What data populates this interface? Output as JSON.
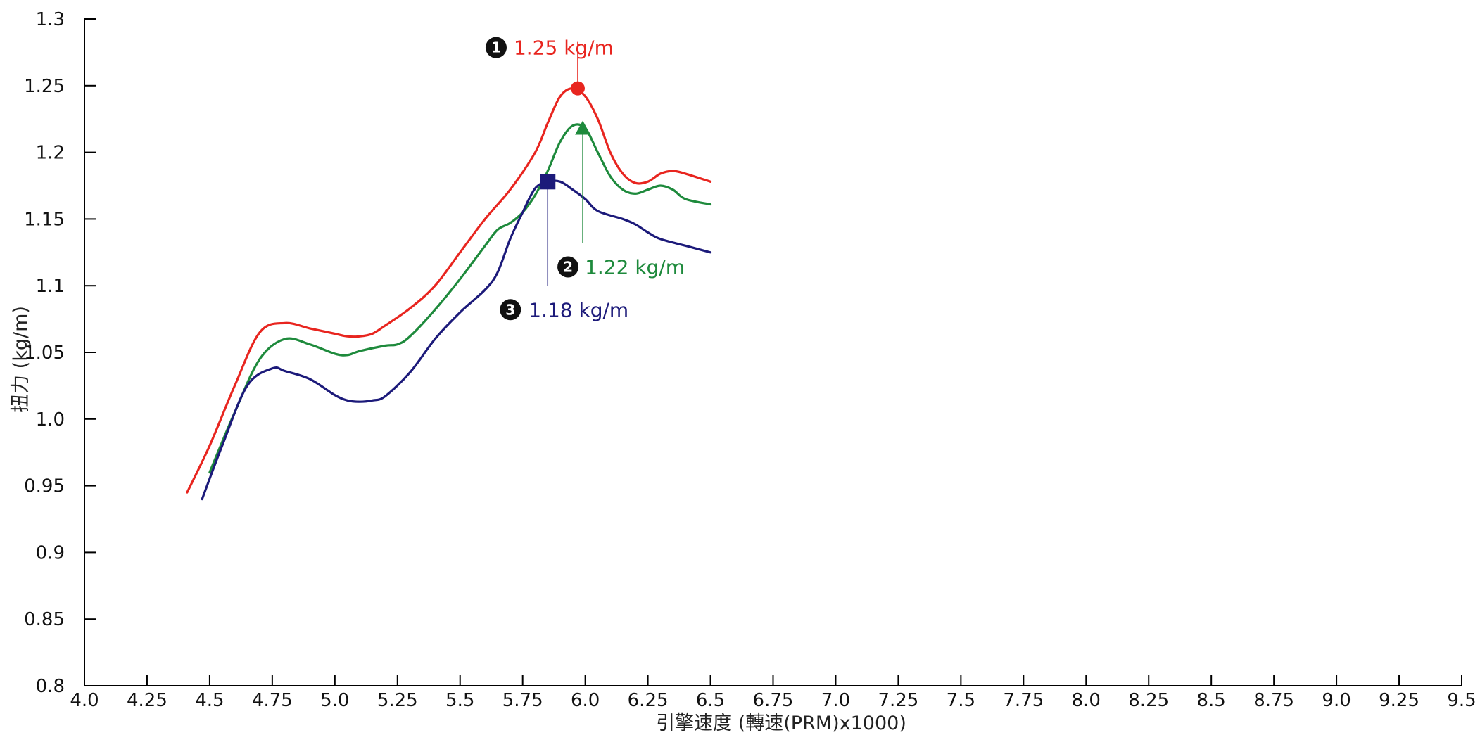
{
  "chart_data": {
    "type": "line",
    "title": "",
    "xlabel": "引擎速度 (轉速(PRM)x1000)",
    "ylabel": "扭力 (kg/m)",
    "xlim": [
      4.0,
      9.5
    ],
    "ylim": [
      0.8,
      1.3
    ],
    "grid": false,
    "xticks": [
      4.0,
      4.25,
      4.5,
      4.75,
      5.0,
      5.25,
      5.5,
      5.75,
      6.0,
      6.25,
      6.5,
      6.75,
      7.0,
      7.25,
      7.5,
      7.75,
      8.0,
      8.25,
      8.5,
      8.75,
      9.0,
      9.25,
      9.5
    ],
    "xtick_labels": [
      "4.0",
      "4.25",
      "4.5",
      "4.75",
      "5.0",
      "5.25",
      "5.5",
      "5.75",
      "6.0",
      "6.25",
      "6.5",
      "6.75",
      "7.0",
      "7.25",
      "7.5",
      "7.75",
      "8.0",
      "8.25",
      "8.5",
      "8.75",
      "9.0",
      "9.25",
      "9.5"
    ],
    "yticks": [
      0.8,
      0.85,
      0.9,
      0.95,
      1.0,
      1.05,
      1.1,
      1.15,
      1.2,
      1.25,
      1.3
    ],
    "ytick_labels": [
      "0.8",
      "0.85",
      "0.9",
      "0.95",
      "1.0",
      "1.05",
      "1.1",
      "1.15",
      "1.2",
      "1.25",
      "1.3"
    ],
    "series": [
      {
        "color": "#e8251f",
        "marker": "circle",
        "x": [
          4.41,
          4.5,
          4.6,
          4.7,
          4.8,
          4.9,
          5.0,
          5.05,
          5.1,
          5.15,
          5.2,
          5.3,
          5.4,
          5.5,
          5.6,
          5.7,
          5.8,
          5.85,
          5.9,
          5.95,
          6.0,
          6.05,
          6.1,
          6.15,
          6.2,
          6.25,
          6.3,
          6.35,
          6.4,
          6.5
        ],
        "y": [
          0.945,
          0.98,
          1.025,
          1.065,
          1.072,
          1.068,
          1.064,
          1.062,
          1.062,
          1.064,
          1.07,
          1.083,
          1.1,
          1.125,
          1.15,
          1.172,
          1.2,
          1.222,
          1.242,
          1.248,
          1.242,
          1.225,
          1.2,
          1.184,
          1.177,
          1.178,
          1.184,
          1.186,
          1.184,
          1.178
        ]
      },
      {
        "color": "#1e8a3c",
        "marker": "triangle",
        "x": [
          4.5,
          4.6,
          4.7,
          4.8,
          4.9,
          5.0,
          5.05,
          5.1,
          5.2,
          5.25,
          5.3,
          5.4,
          5.5,
          5.6,
          5.65,
          5.7,
          5.75,
          5.8,
          5.85,
          5.9,
          5.95,
          6.0,
          6.05,
          6.1,
          6.15,
          6.2,
          6.25,
          6.3,
          6.35,
          6.4,
          6.5
        ],
        "y": [
          0.96,
          1.005,
          1.045,
          1.06,
          1.056,
          1.049,
          1.048,
          1.051,
          1.055,
          1.056,
          1.062,
          1.082,
          1.105,
          1.13,
          1.142,
          1.147,
          1.155,
          1.168,
          1.186,
          1.208,
          1.22,
          1.218,
          1.2,
          1.182,
          1.172,
          1.169,
          1.172,
          1.175,
          1.172,
          1.165,
          1.161
        ]
      },
      {
        "color": "#1c1a7a",
        "marker": "square",
        "x": [
          4.47,
          4.55,
          4.65,
          4.75,
          4.8,
          4.9,
          5.0,
          5.05,
          5.1,
          5.15,
          5.2,
          5.3,
          5.4,
          5.5,
          5.6,
          5.65,
          5.7,
          5.75,
          5.8,
          5.85,
          5.9,
          5.95,
          6.0,
          6.05,
          6.15,
          6.2,
          6.25,
          6.3,
          6.4,
          6.5
        ],
        "y": [
          0.94,
          0.98,
          1.025,
          1.038,
          1.036,
          1.03,
          1.018,
          1.014,
          1.013,
          1.014,
          1.017,
          1.035,
          1.06,
          1.08,
          1.097,
          1.11,
          1.135,
          1.155,
          1.173,
          1.178,
          1.178,
          1.172,
          1.165,
          1.156,
          1.15,
          1.146,
          1.14,
          1.135,
          1.13,
          1.125
        ]
      }
    ],
    "annotations": [
      {
        "num": "❶",
        "label": "1.25 kg/m",
        "x": 5.97,
        "y": 1.248,
        "color": "#e8251f"
      },
      {
        "num": "❷",
        "label": "1.22 kg/m",
        "x": 5.99,
        "y": 1.218,
        "color": "#1e8a3c"
      },
      {
        "num": "❸",
        "label": "1.18 kg/m",
        "x": 5.85,
        "y": 1.178,
        "color": "#1c1a7a"
      }
    ]
  }
}
